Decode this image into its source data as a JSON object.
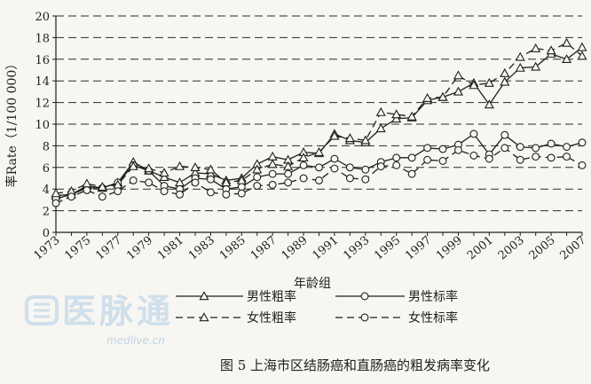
{
  "chart_data": {
    "type": "line",
    "xlabel": "年龄组",
    "ylabel": "率Rate（1/100 000）",
    "caption": "图 5 上海市区结肠癌和直肠癌的粗发病率变化",
    "x": [
      1973,
      1974,
      1975,
      1976,
      1977,
      1978,
      1979,
      1980,
      1981,
      1982,
      1983,
      1984,
      1985,
      1986,
      1987,
      1988,
      1989,
      1990,
      1991,
      1992,
      1993,
      1994,
      1995,
      1996,
      1997,
      1998,
      1999,
      2000,
      2001,
      2002,
      2003,
      2004,
      2005,
      2006,
      2007
    ],
    "x_ticks": [
      "1973",
      "1975",
      "1977",
      "1979",
      "1981",
      "1983",
      "1985",
      "1987",
      "1989",
      "1991",
      "1993",
      "1995",
      "1997",
      "1999",
      "2001",
      "2003",
      "2005",
      "2007"
    ],
    "y_ticks": [
      "0",
      "2",
      "4",
      "6",
      "8",
      "10",
      "12",
      "14",
      "16",
      "18",
      "20"
    ],
    "xlim": [
      1973,
      2007
    ],
    "ylim": [
      0,
      20
    ],
    "grid": "horizontal-dashed",
    "legend_placement": "bottom",
    "series": [
      {
        "name": "男性粗率",
        "marker": "triangle",
        "line": "solid",
        "values": [
          3.4,
          3.5,
          4.3,
          4.1,
          4.6,
          6.5,
          5.7,
          5.1,
          4.6,
          5.5,
          5.4,
          4.8,
          5.0,
          6.3,
          7.0,
          6.7,
          7.4,
          7.3,
          9.1,
          8.5,
          8.3,
          9.6,
          10.5,
          10.6,
          12.2,
          12.5,
          13.0,
          13.8,
          11.8,
          13.9,
          15.2,
          15.3,
          16.5,
          16.0,
          17.1
        ]
      },
      {
        "name": "男性标率",
        "marker": "circle",
        "line": "solid",
        "values": [
          3.1,
          3.5,
          4.1,
          4.1,
          4.6,
          6.2,
          5.7,
          4.3,
          4.0,
          5.0,
          4.9,
          4.0,
          4.2,
          5.1,
          5.4,
          5.4,
          6.2,
          6.0,
          6.8,
          6.0,
          5.8,
          6.5,
          6.9,
          6.9,
          7.8,
          7.7,
          8.1,
          9.1,
          7.2,
          9.0,
          7.9,
          7.8,
          8.2,
          7.9,
          8.3
        ]
      },
      {
        "name": "女性粗率",
        "marker": "triangle",
        "line": "dashed",
        "values": [
          3.6,
          3.8,
          4.5,
          4.2,
          4.4,
          6.1,
          5.9,
          5.5,
          6.1,
          6.0,
          5.8,
          4.6,
          4.8,
          5.8,
          6.3,
          6.1,
          6.9,
          7.4,
          8.9,
          8.7,
          8.5,
          11.1,
          10.9,
          10.7,
          12.4,
          12.5,
          14.5,
          13.6,
          13.8,
          14.7,
          16.2,
          17.0,
          16.8,
          17.5,
          16.3
        ]
      },
      {
        "name": "女性标率",
        "marker": "circle",
        "line": "dashed",
        "values": [
          2.7,
          3.3,
          3.9,
          3.3,
          3.8,
          4.8,
          4.6,
          3.8,
          3.5,
          4.6,
          3.7,
          3.5,
          3.6,
          4.3,
          4.4,
          4.6,
          5.0,
          4.8,
          5.9,
          5.0,
          4.9,
          6.1,
          6.2,
          5.4,
          6.7,
          6.6,
          7.6,
          7.1,
          6.8,
          7.8,
          6.7,
          7.0,
          6.9,
          7.0,
          6.2
        ]
      }
    ]
  },
  "watermark": {
    "logo_text": "医脉通",
    "url": "medlive.cn"
  },
  "colors": {
    "line": "#1f1f1f",
    "grid": "#2a2a2a",
    "background": "#f7f6f2",
    "watermark": "#c9dceb"
  }
}
